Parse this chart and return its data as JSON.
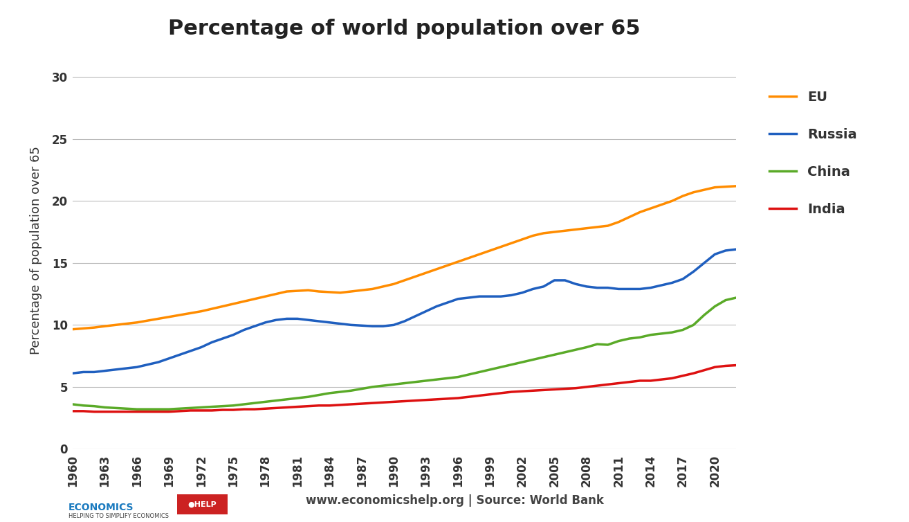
{
  "title": "Percentage of world population over 65",
  "ylabel": "Percentage of population over 65",
  "footer": "www.economicshelp.org | Source: World Bank",
  "background_color": "#ffffff",
  "title_fontsize": 22,
  "label_fontsize": 13,
  "legend_fontsize": 14,
  "years": [
    1960,
    1961,
    1962,
    1963,
    1964,
    1965,
    1966,
    1967,
    1968,
    1969,
    1970,
    1971,
    1972,
    1973,
    1974,
    1975,
    1976,
    1977,
    1978,
    1979,
    1980,
    1981,
    1982,
    1983,
    1984,
    1985,
    1986,
    1987,
    1988,
    1989,
    1990,
    1991,
    1992,
    1993,
    1994,
    1995,
    1996,
    1997,
    1998,
    1999,
    2000,
    2001,
    2002,
    2003,
    2004,
    2005,
    2006,
    2007,
    2008,
    2009,
    2010,
    2011,
    2012,
    2013,
    2014,
    2015,
    2016,
    2017,
    2018,
    2019,
    2020,
    2021,
    2022
  ],
  "EU": [
    9.65,
    9.72,
    9.79,
    9.9,
    10.0,
    10.1,
    10.2,
    10.35,
    10.5,
    10.65,
    10.8,
    10.95,
    11.1,
    11.3,
    11.5,
    11.7,
    11.9,
    12.1,
    12.3,
    12.5,
    12.7,
    12.75,
    12.8,
    12.7,
    12.65,
    12.6,
    12.7,
    12.8,
    12.9,
    13.1,
    13.3,
    13.6,
    13.9,
    14.2,
    14.5,
    14.8,
    15.1,
    15.4,
    15.7,
    16.0,
    16.3,
    16.6,
    16.9,
    17.2,
    17.4,
    17.5,
    17.6,
    17.7,
    17.8,
    17.9,
    18.0,
    18.3,
    18.7,
    19.1,
    19.4,
    19.7,
    20.0,
    20.4,
    20.7,
    20.9,
    21.1,
    21.15,
    21.2
  ],
  "Russia": [
    6.1,
    6.2,
    6.2,
    6.3,
    6.4,
    6.5,
    6.6,
    6.8,
    7.0,
    7.3,
    7.6,
    7.9,
    8.2,
    8.6,
    8.9,
    9.2,
    9.6,
    9.9,
    10.2,
    10.4,
    10.5,
    10.5,
    10.4,
    10.3,
    10.2,
    10.1,
    10.0,
    9.95,
    9.9,
    9.9,
    10.0,
    10.3,
    10.7,
    11.1,
    11.5,
    11.8,
    12.1,
    12.2,
    12.3,
    12.3,
    12.3,
    12.4,
    12.6,
    12.9,
    13.1,
    13.6,
    13.6,
    13.3,
    13.1,
    13.0,
    13.0,
    12.9,
    12.9,
    12.9,
    13.0,
    13.2,
    13.4,
    13.7,
    14.3,
    15.0,
    15.7,
    16.0,
    16.1
  ],
  "China": [
    3.6,
    3.5,
    3.45,
    3.35,
    3.3,
    3.25,
    3.2,
    3.2,
    3.2,
    3.2,
    3.25,
    3.3,
    3.35,
    3.4,
    3.45,
    3.5,
    3.6,
    3.7,
    3.8,
    3.9,
    4.0,
    4.1,
    4.2,
    4.35,
    4.5,
    4.6,
    4.7,
    4.85,
    5.0,
    5.1,
    5.2,
    5.3,
    5.4,
    5.5,
    5.6,
    5.7,
    5.8,
    6.0,
    6.2,
    6.4,
    6.6,
    6.8,
    7.0,
    7.2,
    7.4,
    7.6,
    7.8,
    8.0,
    8.2,
    8.45,
    8.4,
    8.7,
    8.9,
    9.0,
    9.2,
    9.3,
    9.4,
    9.6,
    10.0,
    10.8,
    11.5,
    12.0,
    12.2
  ],
  "India": [
    3.05,
    3.05,
    3.0,
    3.0,
    3.0,
    3.0,
    3.0,
    3.0,
    3.0,
    3.0,
    3.05,
    3.1,
    3.1,
    3.1,
    3.15,
    3.15,
    3.2,
    3.2,
    3.25,
    3.3,
    3.35,
    3.4,
    3.45,
    3.5,
    3.5,
    3.55,
    3.6,
    3.65,
    3.7,
    3.75,
    3.8,
    3.85,
    3.9,
    3.95,
    4.0,
    4.05,
    4.1,
    4.2,
    4.3,
    4.4,
    4.5,
    4.6,
    4.65,
    4.7,
    4.75,
    4.8,
    4.85,
    4.9,
    5.0,
    5.1,
    5.2,
    5.3,
    5.4,
    5.5,
    5.5,
    5.6,
    5.7,
    5.9,
    6.1,
    6.35,
    6.6,
    6.7,
    6.75
  ],
  "series_colors": {
    "EU": "#FF8C00",
    "Russia": "#1F5FBF",
    "China": "#5AAA28",
    "India": "#DD1111"
  },
  "series_linewidth": 2.5,
  "ylim": [
    0,
    32
  ],
  "yticks": [
    0,
    5,
    10,
    15,
    20,
    25,
    30
  ],
  "xtick_years": [
    1960,
    1963,
    1966,
    1969,
    1972,
    1975,
    1978,
    1981,
    1984,
    1987,
    1990,
    1993,
    1996,
    1999,
    2002,
    2005,
    2008,
    2011,
    2014,
    2017,
    2020
  ],
  "grid_color": "#BBBBBB",
  "tick_label_fontsize": 12
}
